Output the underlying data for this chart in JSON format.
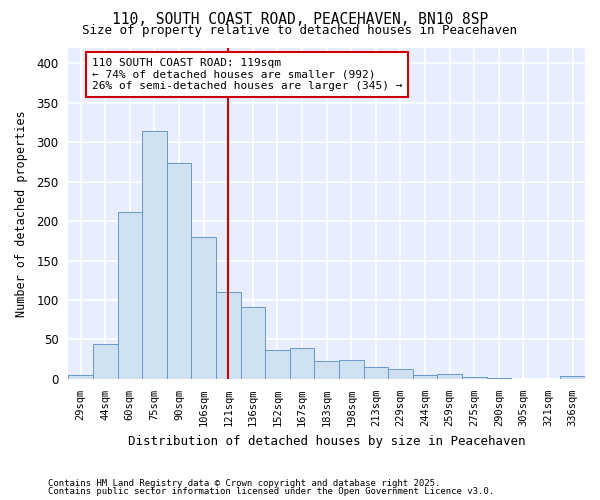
{
  "title1": "110, SOUTH COAST ROAD, PEACEHAVEN, BN10 8SP",
  "title2": "Size of property relative to detached houses in Peacehaven",
  "xlabel": "Distribution of detached houses by size in Peacehaven",
  "ylabel": "Number of detached properties",
  "bar_labels": [
    "29sqm",
    "44sqm",
    "60sqm",
    "75sqm",
    "90sqm",
    "106sqm",
    "121sqm",
    "136sqm",
    "152sqm",
    "167sqm",
    "183sqm",
    "198sqm",
    "213sqm",
    "229sqm",
    "244sqm",
    "259sqm",
    "275sqm",
    "290sqm",
    "305sqm",
    "321sqm",
    "336sqm"
  ],
  "bar_values": [
    5,
    44,
    211,
    314,
    274,
    180,
    110,
    91,
    37,
    39,
    23,
    24,
    15,
    13,
    5,
    6,
    2,
    1,
    0,
    0,
    4
  ],
  "bar_color": "#cfe0f0",
  "bar_edge_color": "#6699cc",
  "vertical_line_x": 6,
  "vertical_line_color": "#cc0000",
  "annotation_text": "110 SOUTH COAST ROAD: 119sqm\n← 74% of detached houses are smaller (992)\n26% of semi-detached houses are larger (345) →",
  "annotation_box_color": "#ffffff",
  "annotation_box_edge": "#cc0000",
  "ylim": [
    0,
    420
  ],
  "yticks": [
    0,
    50,
    100,
    150,
    200,
    250,
    300,
    350,
    400
  ],
  "fig_background": "#ffffff",
  "plot_background": "#e8eeff",
  "grid_color": "#ffffff",
  "footer1": "Contains HM Land Registry data © Crown copyright and database right 2025.",
  "footer2": "Contains public sector information licensed under the Open Government Licence v3.0."
}
